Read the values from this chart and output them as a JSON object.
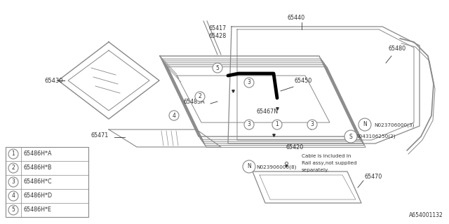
{
  "bg_color": "#ffffff",
  "line_color": "#888888",
  "dark_line": "#333333",
  "thick_line": "#000000",
  "title_code": "A654001132",
  "legend_items": [
    [
      "1",
      "65486H*A"
    ],
    [
      "2",
      "65486H*B"
    ],
    [
      "3",
      "65486H*C"
    ],
    [
      "4",
      "65486H*D"
    ],
    [
      "5",
      "65486H*E"
    ]
  ]
}
